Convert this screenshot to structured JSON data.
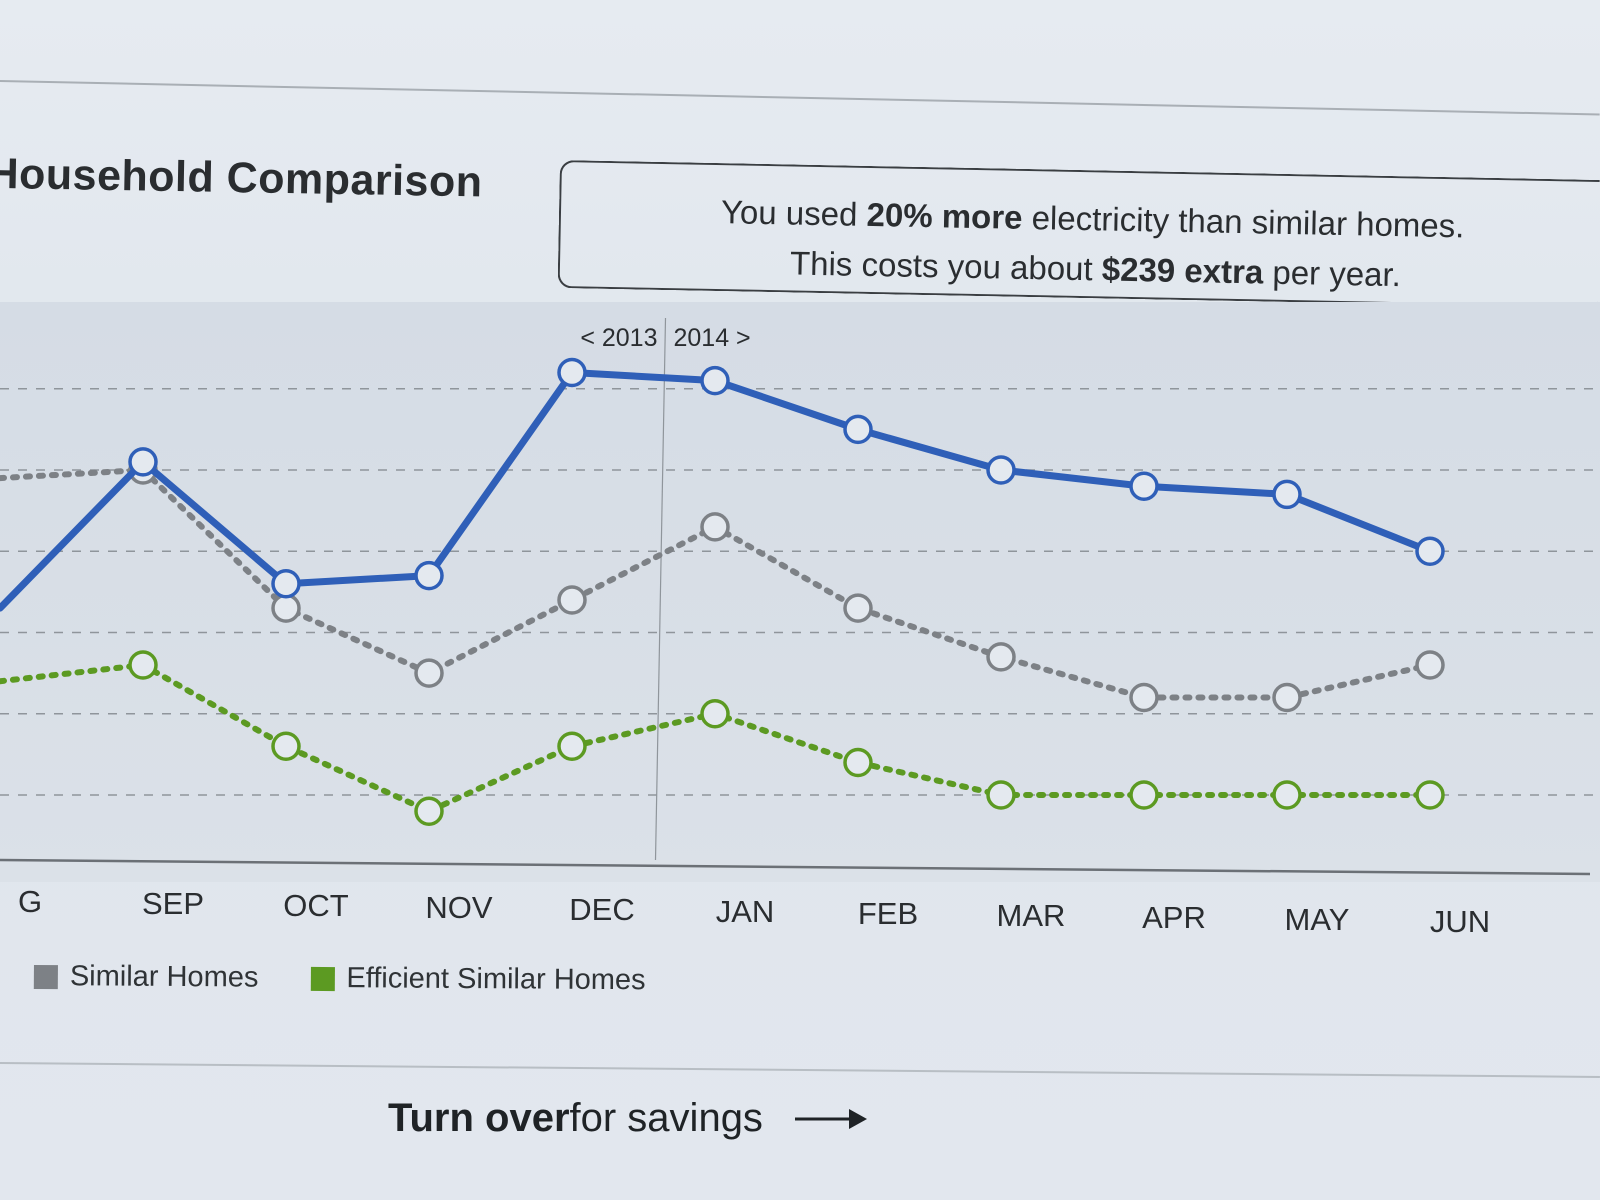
{
  "header": {
    "title": "Household Comparison",
    "callout": {
      "line1_pre": "You used ",
      "line1_bold": "20% more",
      "line1_post": " electricity than similar homes.",
      "line2_pre": "This costs you about ",
      "line2_bold": "$239 extra",
      "line2_post": " per year."
    }
  },
  "year_divider": {
    "left_label": "< 2013",
    "right_label": "2014 >"
  },
  "chart_data": {
    "type": "line",
    "categories": [
      "AUG",
      "SEP",
      "OCT",
      "NOV",
      "DEC",
      "JAN",
      "FEB",
      "MAR",
      "APR",
      "MAY",
      "JUN"
    ],
    "visible_category_labels": [
      "G",
      "SEP",
      "OCT",
      "NOV",
      "DEC",
      "JAN",
      "FEB",
      "MAR",
      "APR",
      "MAY",
      "JUN"
    ],
    "series": [
      {
        "name": "",
        "role": "you",
        "color": "#2f5fb8",
        "style": "solid",
        "values": [
          4.3,
          6.1,
          4.6,
          4.7,
          7.2,
          7.1,
          6.5,
          6.0,
          5.8,
          5.7,
          5.0
        ]
      },
      {
        "name": "Similar Homes",
        "role": "similar",
        "color": "#7d8186",
        "style": "dotted",
        "values": [
          5.9,
          6.0,
          4.3,
          3.5,
          4.4,
          5.3,
          4.3,
          3.7,
          3.2,
          3.2,
          3.6
        ]
      },
      {
        "name": "Efficient Similar Homes",
        "role": "efficient",
        "color": "#5c9a22",
        "style": "dotted",
        "values": [
          3.4,
          3.6,
          2.6,
          1.8,
          2.6,
          3.0,
          2.4,
          2.0,
          2.0,
          2.0,
          2.0
        ]
      }
    ],
    "ylim": [
      1.2,
      7.6
    ],
    "grid": true,
    "gridlines": [
      2,
      3,
      4,
      5,
      6,
      7
    ],
    "legend_position": "bottom-left",
    "divider_between": [
      "DEC",
      "JAN"
    ],
    "title": "",
    "xlabel": "",
    "ylabel": ""
  },
  "legend": [
    {
      "label": "Similar Homes",
      "color": "#7d8186"
    },
    {
      "label": "Efficient Similar Homes",
      "color": "#5c9a22"
    }
  ],
  "footer": {
    "bold": "Turn over",
    "rest": " for savings",
    "icon": "arrow-right-icon"
  }
}
